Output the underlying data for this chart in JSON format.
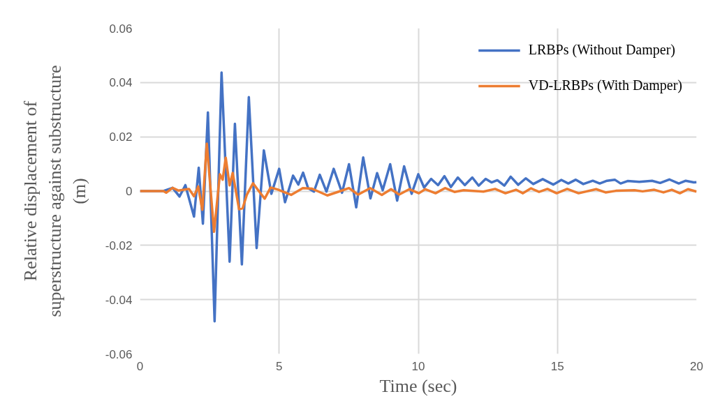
{
  "chart_data": {
    "type": "line",
    "xlabel": "Time (sec)",
    "ylabel": "Relative displacement of\nsuperstructure against substructure\n(m)",
    "xlim": [
      0,
      20
    ],
    "xticks": [
      0,
      5,
      10,
      15,
      20
    ],
    "ylim": [
      -0.06,
      0.06
    ],
    "yticks": [
      -0.06,
      -0.04,
      -0.02,
      0,
      0.02,
      0.04,
      0.06
    ],
    "grid": true,
    "legend": "top right",
    "line_style": "solid",
    "marker": "none",
    "series": [
      {
        "name": "LRBPs (Without Damper)",
        "color": "#4472c4",
        "x": [
          0,
          0.84,
          1.17,
          1.42,
          1.63,
          1.94,
          2.11,
          2.26,
          2.44,
          2.68,
          2.93,
          3.22,
          3.41,
          3.66,
          3.91,
          4.19,
          4.45,
          4.72,
          5.0,
          5.21,
          5.5,
          5.69,
          5.86,
          6.04,
          6.25,
          6.46,
          6.7,
          6.96,
          7.26,
          7.51,
          7.77,
          8.02,
          8.28,
          8.52,
          8.72,
          8.99,
          9.24,
          9.49,
          9.76,
          10.0,
          10.21,
          10.46,
          10.71,
          10.94,
          11.17,
          11.42,
          11.67,
          11.94,
          12.17,
          12.42,
          12.63,
          12.84,
          13.09,
          13.32,
          13.59,
          13.86,
          14.13,
          14.47,
          14.85,
          15.14,
          15.39,
          15.66,
          15.93,
          16.27,
          16.52,
          16.78,
          17.06,
          17.27,
          17.52,
          17.94,
          18.4,
          18.69,
          19.02,
          19.36,
          19.61,
          19.9,
          20
        ],
        "values": [
          0,
          0,
          0.0012,
          -0.002,
          0.0022,
          -0.0094,
          0.0086,
          -0.012,
          0.029,
          -0.048,
          0.0437,
          -0.026,
          0.0248,
          -0.027,
          0.0346,
          -0.021,
          0.015,
          -0.001,
          0.0082,
          -0.0041,
          0.0057,
          0.0024,
          0.0068,
          0.0011,
          -0.0002,
          0.006,
          -0.0002,
          0.0082,
          -0.0006,
          0.0099,
          -0.006,
          0.0124,
          -0.0027,
          0.0066,
          0.0003,
          0.0099,
          -0.0035,
          0.0091,
          -0.001,
          0.0062,
          0.0013,
          0.0045,
          0.0022,
          0.0055,
          0.0015,
          0.005,
          0.0022,
          0.005,
          0.002,
          0.0045,
          0.0032,
          0.004,
          0.002,
          0.0053,
          0.0023,
          0.0047,
          0.0026,
          0.0044,
          0.0024,
          0.0041,
          0.0028,
          0.0042,
          0.0026,
          0.0038,
          0.0028,
          0.0038,
          0.0042,
          0.0028,
          0.0037,
          0.0034,
          0.0038,
          0.003,
          0.0043,
          0.0028,
          0.0038,
          0.0032,
          0.0033
        ]
      },
      {
        "name": "VD-LRBPs (With Damper)",
        "color": "#ed7d31",
        "x": [
          0,
          0.84,
          0.94,
          1.17,
          1.38,
          1.76,
          1.94,
          2.09,
          2.24,
          2.4,
          2.66,
          2.87,
          2.97,
          3.08,
          3.22,
          3.33,
          3.56,
          3.69,
          3.84,
          4.06,
          4.27,
          4.48,
          4.69,
          4.94,
          5.19,
          5.43,
          5.85,
          6.18,
          6.73,
          7.2,
          7.51,
          7.84,
          8.27,
          8.69,
          9.02,
          9.31,
          9.68,
          10.02,
          10.25,
          10.62,
          10.96,
          11.3,
          11.63,
          12.34,
          12.76,
          13.13,
          13.51,
          13.76,
          14.05,
          14.34,
          14.64,
          14.97,
          15.35,
          15.76,
          16.39,
          16.73,
          17.1,
          17.77,
          18.06,
          18.48,
          18.81,
          19.11,
          19.4,
          19.69,
          20
        ],
        "values": [
          0,
          0,
          -0.0006,
          0.0012,
          0.0002,
          0.0008,
          -0.0019,
          0.0017,
          -0.0069,
          0.0175,
          -0.015,
          0.0062,
          0.0042,
          0.0123,
          0.0021,
          0.0067,
          -0.0067,
          -0.0063,
          -0.0013,
          0.0029,
          0,
          -0.0028,
          0.0013,
          0.0006,
          -0.0004,
          -0.0014,
          0.0011,
          0.0009,
          -0.0016,
          0,
          0.0011,
          -0.0013,
          0.0011,
          -0.0014,
          0.0007,
          -0.0013,
          0.0007,
          -0.0008,
          0.0007,
          -0.0008,
          0.0011,
          -0.0003,
          0.0003,
          -0.0002,
          0.0008,
          -0.0008,
          0.0005,
          -0.0008,
          0.001,
          -0.0003,
          0.0008,
          -0.0008,
          0.0008,
          -0.0008,
          0.0007,
          -0.0005,
          0.0001,
          0.0003,
          -0.0001,
          0.0005,
          -0.0005,
          0.0005,
          -0.0008,
          0.0007,
          -0.0002
        ]
      }
    ]
  }
}
